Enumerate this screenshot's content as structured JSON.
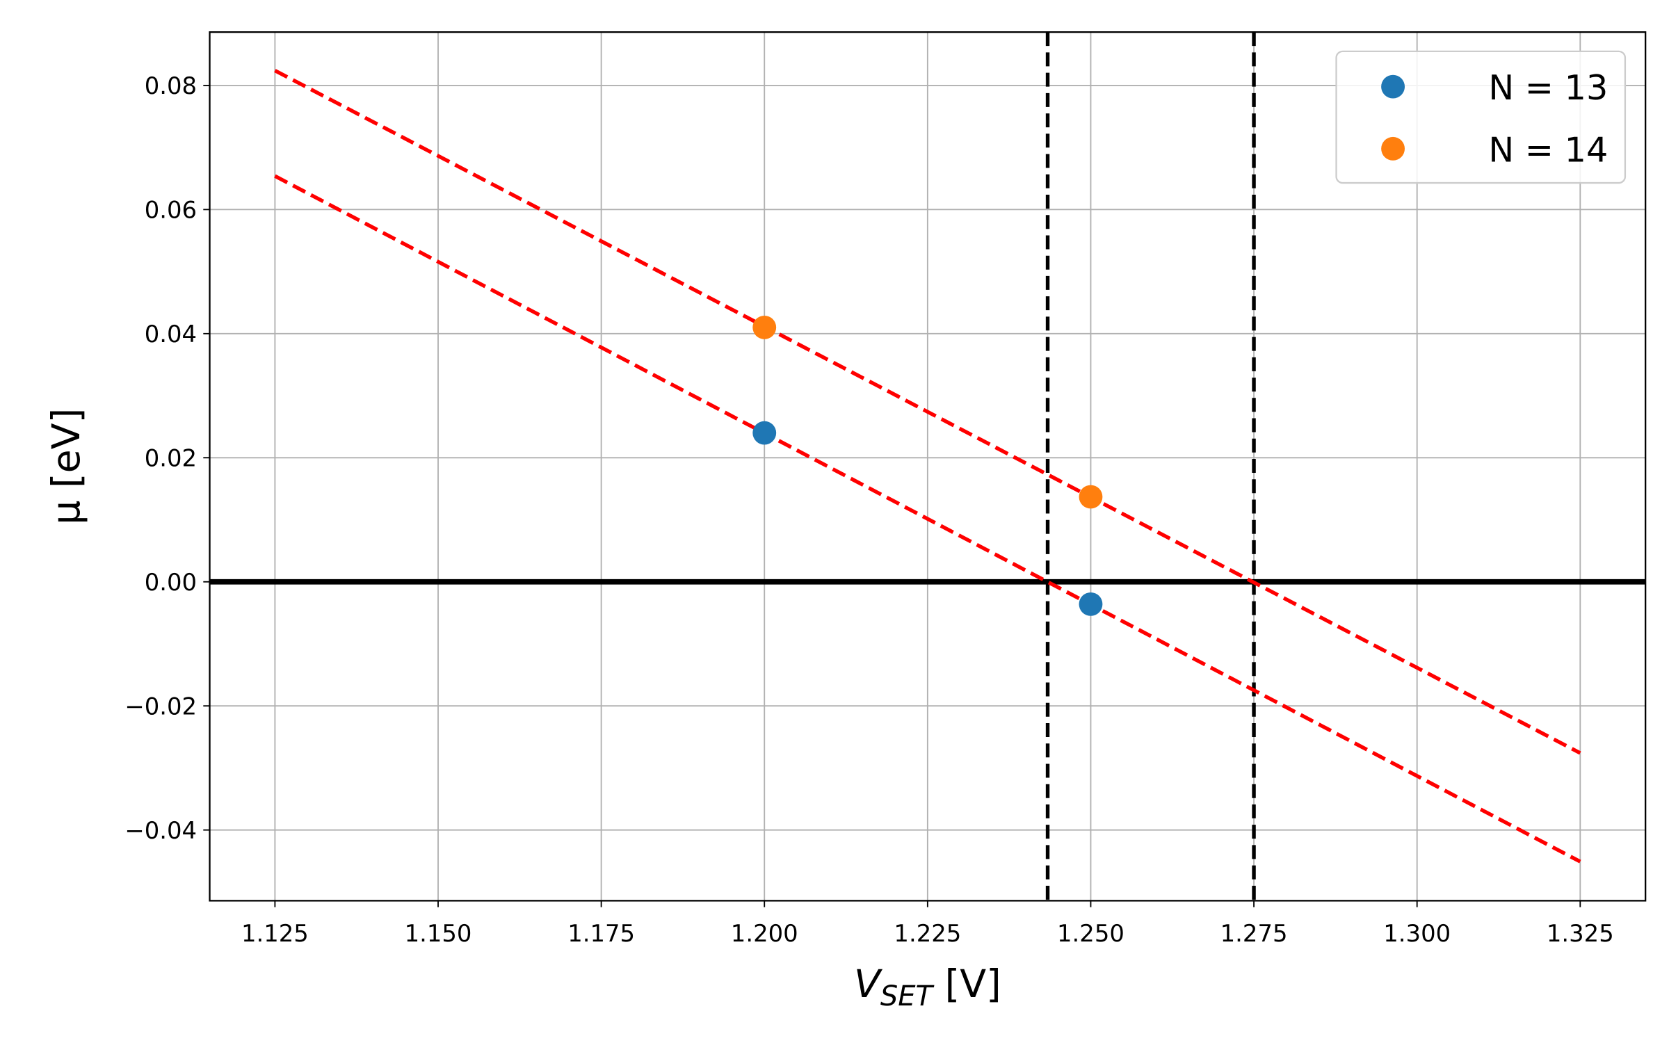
{
  "chart_data": {
    "type": "scatter",
    "xlabel_main": "V",
    "xlabel_sub": "SET",
    "xlabel_unit": " [V]",
    "ylabel": "μ [eV]",
    "xlim": [
      1.115,
      1.335
    ],
    "ylim": [
      -0.0514,
      0.0886
    ],
    "grid": true,
    "legend_position": "top-right",
    "xticks": [
      1.125,
      1.15,
      1.175,
      1.2,
      1.225,
      1.25,
      1.275,
      1.3,
      1.325
    ],
    "xtick_labels": [
      "1.125",
      "1.150",
      "1.175",
      "1.200",
      "1.225",
      "1.250",
      "1.275",
      "1.300",
      "1.325"
    ],
    "yticks": [
      -0.04,
      -0.02,
      0,
      0.02,
      0.04,
      0.06,
      0.08
    ],
    "ytick_labels": [
      "−0.04",
      "−0.02",
      "0.00",
      "0.02",
      "0.04",
      "0.06",
      "0.08"
    ],
    "series": [
      {
        "name": "N = 13",
        "color": "#1f77b4",
        "x": [
          1.2,
          1.25
        ],
        "y": [
          0.024,
          -0.0036
        ]
      },
      {
        "name": "N = 14",
        "color": "#ff7f0e",
        "x": [
          1.2,
          1.25
        ],
        "y": [
          0.041,
          0.0137
        ]
      }
    ],
    "fit_lines": [
      {
        "color": "#ff0000",
        "style": "dashed",
        "x": [
          1.125,
          1.325
        ],
        "y": [
          0.0824,
          -0.0276
        ]
      },
      {
        "color": "#ff0000",
        "style": "dashed",
        "x": [
          1.125,
          1.325
        ],
        "y": [
          0.0654,
          -0.0451
        ]
      }
    ],
    "vertical_lines": [
      {
        "x": 1.2434,
        "color": "#000000",
        "style": "dashed"
      },
      {
        "x": 1.275,
        "color": "#000000",
        "style": "dashed"
      }
    ],
    "horizontal_lines": [
      {
        "y": 0,
        "color": "#000000",
        "style": "solid"
      }
    ]
  }
}
